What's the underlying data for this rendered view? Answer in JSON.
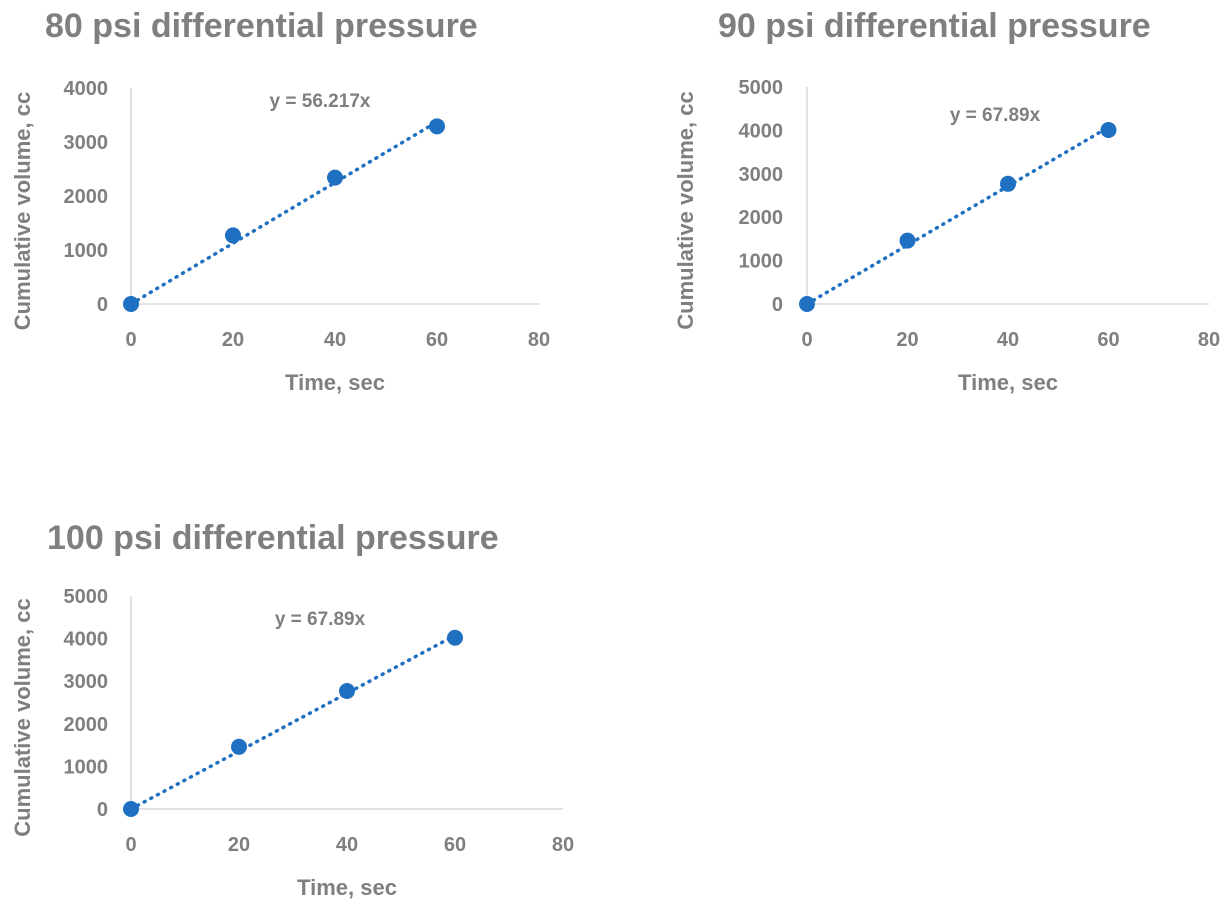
{
  "colors": {
    "marker": "#1f70c1",
    "trendline": "#1f70c1",
    "text": "#7f7f7f",
    "axis": "#d9d9d9"
  },
  "chart_data": [
    {
      "type": "scatter",
      "title": "80 psi differential pressure",
      "xlabel": "Time, sec",
      "ylabel": "Cumulative volume, cc",
      "xlim": [
        0,
        80
      ],
      "ylim": [
        0,
        4000
      ],
      "xticks": [
        "0",
        "20",
        "40",
        "60",
        "80"
      ],
      "yticks": [
        "0",
        "1000",
        "2000",
        "3000",
        "4000"
      ],
      "x": [
        0,
        20,
        40,
        60
      ],
      "y": [
        0,
        1270,
        2340,
        3290
      ],
      "trendline": {
        "type": "linear",
        "slope": 56.217,
        "label": "y = 56.217x"
      },
      "legend": "none",
      "grid": false
    },
    {
      "type": "scatter",
      "title": "90 psi differential pressure",
      "xlabel": "Time, sec",
      "ylabel": "Cumulative volume, cc",
      "xlim": [
        0,
        80
      ],
      "ylim": [
        0,
        5000
      ],
      "xticks": [
        "0",
        "20",
        "40",
        "60",
        "80"
      ],
      "yticks": [
        "0",
        "1000",
        "2000",
        "3000",
        "4000",
        "5000"
      ],
      "x": [
        0,
        20,
        40,
        60
      ],
      "y": [
        0,
        1460,
        2770,
        4010
      ],
      "trendline": {
        "type": "linear",
        "slope": 67.89,
        "label": "y = 67.89x"
      },
      "legend": "none",
      "grid": false
    },
    {
      "type": "scatter",
      "title": "100 psi differential pressure",
      "xlabel": "Time, sec",
      "ylabel": "Cumulative volume, cc",
      "xlim": [
        0,
        80
      ],
      "ylim": [
        0,
        5000
      ],
      "xticks": [
        "0",
        "20",
        "40",
        "60",
        "80"
      ],
      "yticks": [
        "0",
        "1000",
        "2000",
        "3000",
        "4000",
        "5000"
      ],
      "x": [
        0,
        20,
        40,
        60
      ],
      "y": [
        0,
        1460,
        2770,
        4020
      ],
      "trendline": {
        "type": "linear",
        "slope": 67.89,
        "label": "y = 67.89x"
      },
      "legend": "none",
      "grid": false
    }
  ]
}
